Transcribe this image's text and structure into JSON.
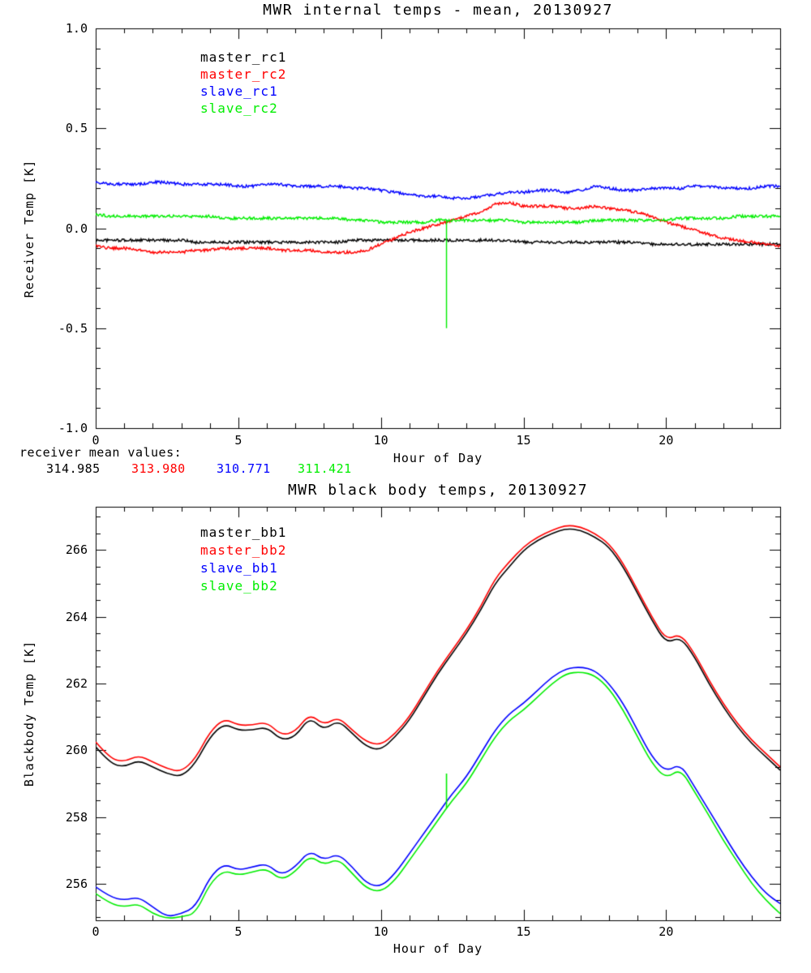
{
  "page": {
    "background": "#ffffff"
  },
  "chart_data": [
    {
      "type": "line",
      "title": "MWR internal temps - mean, 20130927",
      "xlabel": "Hour of Day",
      "ylabel": "Receiver Temp [K]",
      "xlim": [
        0,
        24
      ],
      "ylim": [
        -1.0,
        1.0
      ],
      "xticks": [
        0,
        5,
        10,
        15,
        20
      ],
      "xtick_labels": [
        "0",
        "5",
        "10",
        "15",
        "20"
      ],
      "yticks": [
        -1.0,
        -0.5,
        0.0,
        0.5,
        1.0
      ],
      "ytick_labels": [
        "-1.0",
        "-0.5",
        "0.0",
        "0.5",
        "1.0"
      ],
      "grid": false,
      "legend_position": "upper-left-inside",
      "x": [
        0,
        0.5,
        1,
        1.5,
        2,
        2.5,
        3,
        3.5,
        4,
        4.5,
        5,
        5.5,
        6,
        6.5,
        7,
        7.5,
        8,
        8.5,
        9,
        9.5,
        10,
        10.5,
        11,
        11.5,
        12,
        12.5,
        13,
        13.5,
        14,
        14.5,
        15,
        15.5,
        16,
        16.5,
        17,
        17.5,
        18,
        18.5,
        19,
        19.5,
        20,
        20.5,
        21,
        21.5,
        22,
        22.5,
        23,
        23.5,
        24
      ],
      "series": [
        {
          "name": "master_rc1",
          "color": "#000000",
          "y": [
            -0.06,
            -0.06,
            -0.06,
            -0.06,
            -0.06,
            -0.06,
            -0.06,
            -0.07,
            -0.07,
            -0.07,
            -0.07,
            -0.07,
            -0.07,
            -0.07,
            -0.07,
            -0.07,
            -0.07,
            -0.07,
            -0.06,
            -0.06,
            -0.06,
            -0.06,
            -0.06,
            -0.06,
            -0.06,
            -0.06,
            -0.06,
            -0.06,
            -0.06,
            -0.06,
            -0.07,
            -0.07,
            -0.07,
            -0.07,
            -0.07,
            -0.07,
            -0.07,
            -0.07,
            -0.07,
            -0.08,
            -0.08,
            -0.08,
            -0.08,
            -0.08,
            -0.08,
            -0.08,
            -0.08,
            -0.08,
            -0.08
          ]
        },
        {
          "name": "master_rc2",
          "color": "#ff0000",
          "y": [
            -0.09,
            -0.1,
            -0.1,
            -0.11,
            -0.12,
            -0.12,
            -0.12,
            -0.11,
            -0.11,
            -0.1,
            -0.1,
            -0.1,
            -0.1,
            -0.11,
            -0.11,
            -0.11,
            -0.12,
            -0.12,
            -0.12,
            -0.11,
            -0.08,
            -0.05,
            -0.02,
            0.0,
            0.02,
            0.04,
            0.06,
            0.08,
            0.12,
            0.13,
            0.11,
            0.11,
            0.11,
            0.1,
            0.1,
            0.11,
            0.1,
            0.09,
            0.08,
            0.06,
            0.03,
            0.01,
            -0.01,
            -0.03,
            -0.05,
            -0.06,
            -0.07,
            -0.08,
            -0.09
          ]
        },
        {
          "name": "slave_rc1",
          "color": "#0000ff",
          "y": [
            0.23,
            0.22,
            0.22,
            0.22,
            0.23,
            0.23,
            0.22,
            0.22,
            0.22,
            0.22,
            0.21,
            0.21,
            0.22,
            0.22,
            0.21,
            0.21,
            0.21,
            0.21,
            0.2,
            0.2,
            0.19,
            0.18,
            0.17,
            0.16,
            0.16,
            0.15,
            0.15,
            0.16,
            0.17,
            0.18,
            0.18,
            0.19,
            0.19,
            0.18,
            0.19,
            0.21,
            0.2,
            0.19,
            0.19,
            0.2,
            0.2,
            0.2,
            0.21,
            0.21,
            0.2,
            0.2,
            0.2,
            0.21,
            0.21
          ]
        },
        {
          "name": "slave_rc2",
          "color": "#00ee00",
          "y": [
            0.07,
            0.06,
            0.06,
            0.06,
            0.06,
            0.06,
            0.06,
            0.06,
            0.06,
            0.05,
            0.05,
            0.05,
            0.05,
            0.05,
            0.05,
            0.05,
            0.05,
            0.05,
            0.04,
            0.04,
            0.03,
            0.03,
            0.03,
            0.03,
            0.04,
            0.04,
            0.04,
            0.04,
            0.04,
            0.04,
            0.03,
            0.03,
            0.03,
            0.03,
            0.03,
            0.04,
            0.04,
            0.04,
            0.04,
            0.04,
            0.04,
            0.05,
            0.05,
            0.05,
            0.05,
            0.06,
            0.06,
            0.06,
            0.06
          ],
          "spike": {
            "x": 12.3,
            "y": -0.5
          }
        }
      ],
      "annotation": {
        "heading": "receiver mean values:",
        "values": [
          {
            "text": "314.985",
            "color": "#000000"
          },
          {
            "text": "313.980",
            "color": "#ff0000"
          },
          {
            "text": "310.771",
            "color": "#0000ff"
          },
          {
            "text": "311.421",
            "color": "#00ee00"
          }
        ]
      }
    },
    {
      "type": "line",
      "title": "MWR black body temps, 20130927",
      "xlabel": "Hour of Day",
      "ylabel": "Blackbody Temp [K]",
      "xlim": [
        0,
        24
      ],
      "ylim": [
        254.9,
        267.3
      ],
      "xticks": [
        0,
        5,
        10,
        15,
        20
      ],
      "xtick_labels": [
        "0",
        "5",
        "10",
        "15",
        "20"
      ],
      "yticks": [
        256,
        258,
        260,
        262,
        264,
        266
      ],
      "ytick_labels": [
        "256",
        "258",
        "260",
        "262",
        "264",
        "266"
      ],
      "grid": false,
      "legend_position": "upper-left-inside",
      "x": [
        0,
        0.5,
        1,
        1.5,
        2,
        2.5,
        3,
        3.5,
        4,
        4.5,
        5,
        5.5,
        6,
        6.5,
        7,
        7.5,
        8,
        8.5,
        9,
        9.5,
        10,
        10.5,
        11,
        11.5,
        12,
        12.5,
        13,
        13.5,
        14,
        14.5,
        15,
        15.5,
        16,
        16.5,
        17,
        17.5,
        18,
        18.5,
        19,
        19.5,
        20,
        20.5,
        21,
        21.5,
        22,
        22.5,
        23,
        23.5,
        24
      ],
      "series": [
        {
          "name": "master_bb1",
          "color": "#000000",
          "y": [
            260.1,
            259.6,
            259.5,
            259.7,
            259.5,
            259.3,
            259.2,
            259.6,
            260.4,
            260.8,
            260.6,
            260.6,
            260.7,
            260.3,
            260.4,
            261.0,
            260.6,
            260.9,
            260.5,
            260.1,
            260.0,
            260.4,
            260.9,
            261.6,
            262.3,
            262.9,
            263.5,
            264.2,
            265.0,
            265.5,
            266.0,
            266.3,
            266.5,
            266.65,
            266.6,
            266.4,
            266.1,
            265.5,
            264.7,
            263.9,
            263.2,
            263.4,
            262.8,
            262.0,
            261.3,
            260.7,
            260.2,
            259.8,
            259.4
          ]
        },
        {
          "name": "master_bb2",
          "color": "#ff0000",
          "y": [
            260.25,
            259.75,
            259.65,
            259.85,
            259.65,
            259.45,
            259.35,
            259.75,
            260.55,
            260.95,
            260.75,
            260.75,
            260.85,
            260.45,
            260.55,
            261.1,
            260.75,
            261.0,
            260.6,
            260.25,
            260.15,
            260.5,
            261.0,
            261.7,
            262.4,
            263.0,
            263.6,
            264.3,
            265.15,
            265.65,
            266.1,
            266.4,
            266.6,
            266.75,
            266.7,
            266.5,
            266.2,
            265.6,
            264.8,
            264.0,
            263.3,
            263.5,
            262.9,
            262.1,
            261.4,
            260.8,
            260.3,
            259.9,
            259.5
          ]
        },
        {
          "name": "slave_bb1",
          "color": "#0000ff",
          "y": [
            255.9,
            255.6,
            255.5,
            255.6,
            255.3,
            255.0,
            255.1,
            255.3,
            256.2,
            256.6,
            256.4,
            256.5,
            256.6,
            256.25,
            256.5,
            257.0,
            256.7,
            256.9,
            256.5,
            256.0,
            255.9,
            256.3,
            256.9,
            257.5,
            258.1,
            258.7,
            259.2,
            259.9,
            260.6,
            261.1,
            261.4,
            261.8,
            262.2,
            262.45,
            262.5,
            262.4,
            262.0,
            261.4,
            260.6,
            259.8,
            259.35,
            259.6,
            258.9,
            258.2,
            257.5,
            256.8,
            256.2,
            255.7,
            255.4
          ]
        },
        {
          "name": "slave_bb2",
          "color": "#00ee00",
          "y": [
            255.7,
            255.4,
            255.3,
            255.4,
            255.1,
            254.95,
            255.0,
            255.1,
            256.0,
            256.4,
            256.25,
            256.35,
            256.45,
            256.1,
            256.35,
            256.85,
            256.55,
            256.75,
            256.3,
            255.85,
            255.75,
            256.1,
            256.7,
            257.3,
            257.9,
            258.5,
            259.0,
            259.7,
            260.4,
            260.9,
            261.2,
            261.6,
            262.0,
            262.3,
            262.35,
            262.25,
            261.85,
            261.2,
            260.4,
            259.6,
            259.15,
            259.45,
            258.75,
            258.05,
            257.3,
            256.65,
            256.0,
            255.5,
            255.1
          ],
          "spike": {
            "x": 12.3,
            "y": 259.3
          }
        }
      ]
    }
  ]
}
